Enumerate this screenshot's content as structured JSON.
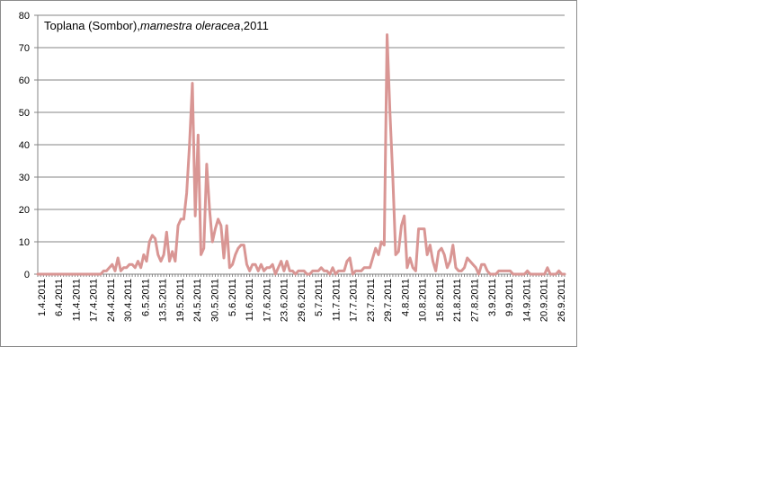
{
  "chart_data": {
    "type": "line",
    "title_parts": {
      "prefix": "Toplana (Sombor),",
      "species": "mamestra oleracea",
      "suffix": ",2011"
    },
    "xlabel": "",
    "ylabel": "",
    "ylim": [
      0,
      80
    ],
    "yticks": [
      0,
      10,
      20,
      30,
      40,
      50,
      60,
      70,
      80
    ],
    "grid": true,
    "legend": "none",
    "x_start": "1.4.2011",
    "x_end": "30.9.2011",
    "xtick_labels": [
      "1.4.2011",
      "6.4.2011",
      "11.4.2011",
      "17.4.2011",
      "24.4.2011",
      "30.4.2011",
      "6.5.2011",
      "13.5.2011",
      "19.5.2011",
      "24.5.2011",
      "30.5.2011",
      "5.6.2011",
      "11.6.2011",
      "17.6.2011",
      "23.6.2011",
      "29.6.2011",
      "5.7.2011",
      "11.7.2011",
      "17.7.2011",
      "23.7.2011",
      "29.7.2011",
      "4.8.2011",
      "10.8.2011",
      "15.8.2011",
      "21.8.2011",
      "27.8.2011",
      "3.9.2011",
      "9.9.2011",
      "14.9.2011",
      "20.9.2011",
      "26.9.2011"
    ],
    "series": [
      {
        "color": "#d99694",
        "values": [
          0,
          0,
          0,
          0,
          0,
          0,
          0,
          0,
          0,
          0,
          0,
          0,
          0,
          0,
          0,
          0,
          0,
          0,
          0,
          0,
          0,
          0,
          0,
          1,
          1,
          2,
          3,
          1,
          5,
          1,
          2,
          2,
          3,
          3,
          2,
          4,
          2,
          6,
          4,
          10,
          12,
          11,
          6,
          4,
          6,
          13,
          4,
          7,
          4,
          15,
          17,
          17,
          25,
          40,
          59,
          18,
          43,
          6,
          8,
          34,
          20,
          10,
          14,
          17,
          15,
          5,
          15,
          2,
          3,
          6,
          8,
          9,
          9,
          3,
          1,
          3,
          3,
          1,
          3,
          1,
          2,
          2,
          3,
          0,
          2,
          4,
          1,
          4,
          1,
          1,
          0,
          1,
          1,
          1,
          0,
          0,
          1,
          1,
          1,
          2,
          1,
          1,
          0,
          2,
          0,
          1,
          1,
          1,
          4,
          5,
          0,
          1,
          1,
          1,
          2,
          2,
          2,
          5,
          8,
          6,
          10,
          9,
          74,
          50,
          30,
          6,
          7,
          15,
          18,
          2,
          5,
          2,
          1,
          14,
          14,
          14,
          6,
          9,
          4,
          1,
          7,
          8,
          6,
          2,
          4,
          9,
          2,
          1,
          1,
          2,
          5,
          4,
          3,
          2,
          0,
          3,
          3,
          1,
          0,
          0,
          0,
          1,
          1,
          1,
          1,
          1,
          0,
          0,
          0,
          0,
          0,
          1,
          0,
          0,
          0,
          0,
          0,
          0,
          2,
          0,
          0,
          0,
          1,
          0,
          0
        ]
      }
    ]
  }
}
